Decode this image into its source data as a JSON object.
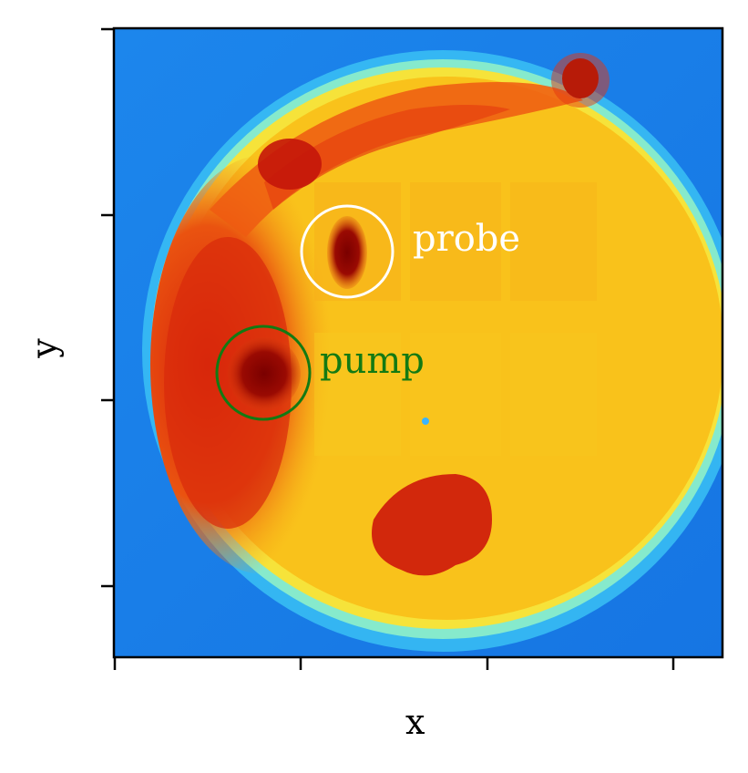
{
  "axes": {
    "xlabel": "x",
    "ylabel": "y"
  },
  "annotations": {
    "probe": {
      "label": "probe",
      "color": "#ffffff"
    },
    "pump": {
      "label": "pump",
      "color": "#137a13"
    }
  },
  "colormap": {
    "background": "#1a7fe8",
    "edge": "#5fe0ff",
    "rim": "#f7e31a",
    "body": "#f9c21a",
    "hot": "#e8380f",
    "darkest": "#7a0000"
  }
}
